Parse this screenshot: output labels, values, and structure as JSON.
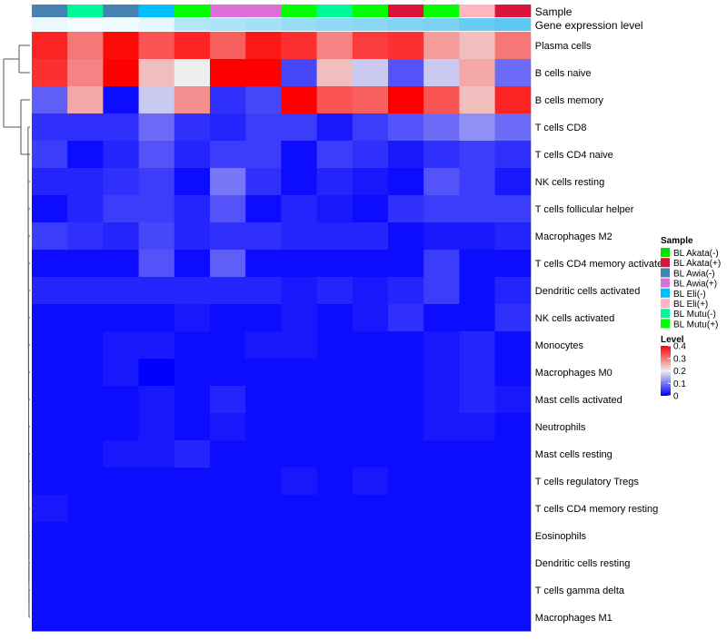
{
  "chart_data": {
    "type": "heatmap",
    "annotation_labels": [
      "Sample",
      "Gene expression level"
    ],
    "rows": [
      "Plasma cells",
      "B cells naive",
      "B cells memory",
      "T cells CD8",
      "T cells CD4 naive",
      "NK cells resting",
      "T cells follicular helper",
      "Macrophages M2",
      "T cells CD4 memory activated",
      "Dendritic cells activated",
      "NK cells activated",
      "Monocytes",
      "Macrophages M0",
      "Mast cells activated",
      "Neutrophils",
      "Mast cells resting",
      "T cells regulatory  Tregs",
      "T cells CD4 memory resting",
      "Eosinophils",
      "Dendritic cells resting",
      "T cells gamma delta",
      "Macrophages M1"
    ],
    "columns": {
      "sample": [
        "BL Awia(-)",
        "BL Mutu(-)",
        "BL Awia(-)",
        "BL Eli(-)",
        "BL Mutu(+)",
        "BL Awia(+)",
        "BL Awia(+)",
        "BL Mutu(+)",
        "BL Mutu(-)",
        "BL Mutu(+)",
        "BL Akata(+)",
        "BL Mutu(+)",
        "BL Eli(+)",
        "BL Akata(+)"
      ],
      "gene_expression_level": [
        0.04,
        0.02,
        0.03,
        0.05,
        0.15,
        0.16,
        0.18,
        0.2,
        0.22,
        0.23,
        0.25,
        0.26,
        0.3,
        0.32
      ]
    },
    "values": [
      [
        0.37,
        0.3,
        0.39,
        0.33,
        0.37,
        0.32,
        0.38,
        0.36,
        0.29,
        0.35,
        0.36,
        0.27,
        0.24,
        0.3
      ],
      [
        0.36,
        0.29,
        0.4,
        0.24,
        0.2,
        0.4,
        0.4,
        0.06,
        0.24,
        0.17,
        0.07,
        0.17,
        0.26,
        0.09
      ],
      [
        0.08,
        0.26,
        0.01,
        0.17,
        0.28,
        0.04,
        0.06,
        0.4,
        0.33,
        0.32,
        0.4,
        0.33,
        0.24,
        0.37
      ],
      [
        0.04,
        0.04,
        0.04,
        0.09,
        0.04,
        0.03,
        0.05,
        0.05,
        0.02,
        0.05,
        0.07,
        0.09,
        0.12,
        0.09
      ],
      [
        0.05,
        0.01,
        0.03,
        0.07,
        0.03,
        0.05,
        0.05,
        0.01,
        0.05,
        0.04,
        0.02,
        0.04,
        0.05,
        0.04
      ],
      [
        0.03,
        0.03,
        0.04,
        0.05,
        0.01,
        0.1,
        0.04,
        0.01,
        0.03,
        0.02,
        0.01,
        0.07,
        0.05,
        0.02
      ],
      [
        0.01,
        0.03,
        0.05,
        0.05,
        0.03,
        0.07,
        0.01,
        0.03,
        0.02,
        0.01,
        0.04,
        0.05,
        0.05,
        0.05
      ],
      [
        0.05,
        0.04,
        0.03,
        0.06,
        0.03,
        0.04,
        0.04,
        0.03,
        0.03,
        0.03,
        0.01,
        0.02,
        0.02,
        0.03
      ],
      [
        0.01,
        0.01,
        0.01,
        0.07,
        0.01,
        0.08,
        0.01,
        0.01,
        0.01,
        0.01,
        0.01,
        0.05,
        0.01,
        0.01
      ],
      [
        0.03,
        0.03,
        0.03,
        0.03,
        0.03,
        0.03,
        0.03,
        0.02,
        0.03,
        0.02,
        0.03,
        0.05,
        0.01,
        0.03
      ],
      [
        0.01,
        0.01,
        0.01,
        0.01,
        0.02,
        0.01,
        0.01,
        0.02,
        0.01,
        0.02,
        0.04,
        0.01,
        0.01,
        0.04
      ],
      [
        0.01,
        0.01,
        0.02,
        0.02,
        0.01,
        0.01,
        0.02,
        0.02,
        0.01,
        0.01,
        0.01,
        0.02,
        0.03,
        0.01
      ],
      [
        0.01,
        0.01,
        0.02,
        0.0,
        0.01,
        0.01,
        0.01,
        0.01,
        0.01,
        0.01,
        0.01,
        0.02,
        0.03,
        0.01
      ],
      [
        0.01,
        0.01,
        0.01,
        0.02,
        0.01,
        0.03,
        0.01,
        0.01,
        0.01,
        0.01,
        0.01,
        0.02,
        0.03,
        0.02
      ],
      [
        0.01,
        0.01,
        0.01,
        0.02,
        0.01,
        0.02,
        0.01,
        0.01,
        0.01,
        0.01,
        0.01,
        0.02,
        0.02,
        0.01
      ],
      [
        0.01,
        0.01,
        0.02,
        0.02,
        0.03,
        0.01,
        0.01,
        0.01,
        0.01,
        0.01,
        0.01,
        0.01,
        0.01,
        0.01
      ],
      [
        0.01,
        0.01,
        0.01,
        0.01,
        0.01,
        0.01,
        0.01,
        0.02,
        0.01,
        0.02,
        0.01,
        0.01,
        0.01,
        0.01
      ],
      [
        0.02,
        0.01,
        0.01,
        0.01,
        0.01,
        0.01,
        0.01,
        0.01,
        0.01,
        0.01,
        0.01,
        0.01,
        0.01,
        0.01
      ],
      [
        0.01,
        0.01,
        0.01,
        0.01,
        0.01,
        0.01,
        0.01,
        0.01,
        0.01,
        0.01,
        0.01,
        0.01,
        0.01,
        0.01
      ],
      [
        0.01,
        0.01,
        0.01,
        0.01,
        0.01,
        0.01,
        0.01,
        0.01,
        0.01,
        0.01,
        0.01,
        0.01,
        0.01,
        0.01
      ],
      [
        0.01,
        0.01,
        0.01,
        0.01,
        0.01,
        0.01,
        0.01,
        0.01,
        0.01,
        0.01,
        0.01,
        0.01,
        0.01,
        0.01
      ],
      [
        0.01,
        0.01,
        0.01,
        0.01,
        0.01,
        0.01,
        0.01,
        0.01,
        0.01,
        0.01,
        0.01,
        0.01,
        0.01,
        0.01
      ]
    ],
    "legend_sample": {
      "title": "Sample",
      "entries": [
        {
          "label": "BL Akata(-)",
          "color": "#00E400"
        },
        {
          "label": "BL Akata(+)",
          "color": "#DC143C"
        },
        {
          "label": "BL Awia(-)",
          "color": "#4682B4"
        },
        {
          "label": "BL Awia(+)",
          "color": "#DA70D6"
        },
        {
          "label": "BL Eli(-)",
          "color": "#00BFFF"
        },
        {
          "label": "BL Eli(+)",
          "color": "#FFB6C1"
        },
        {
          "label": "BL Mutu(-)",
          "color": "#00FA9A"
        },
        {
          "label": "BL Mutu(+)",
          "color": "#00FF00"
        }
      ]
    },
    "legend_level": {
      "title": "Level",
      "ticks": [
        "0.4",
        "0.3",
        "0.2",
        "0.1",
        "0"
      ],
      "tick_values": [
        0.4,
        0.3,
        0.2,
        0.1,
        0.0
      ],
      "range": [
        0,
        0.4
      ]
    },
    "color_scale": {
      "low": "#0000FF",
      "mid": "#EEEEEE",
      "high": "#FF0000",
      "range": [
        0,
        0.4
      ]
    },
    "annotation_color_scale": {
      "low": "#FFFFFF",
      "high": "#5EC8F0",
      "range": [
        0,
        0.32
      ]
    }
  }
}
